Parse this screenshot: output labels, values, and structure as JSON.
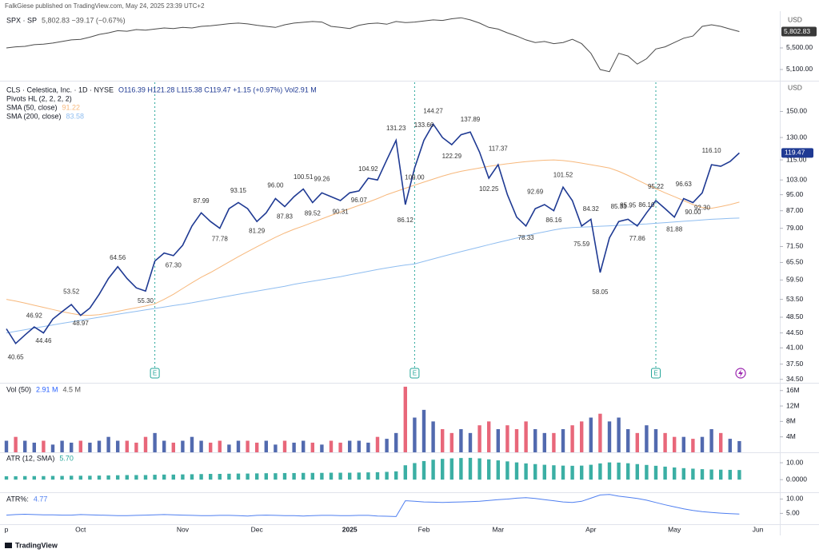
{
  "header": "FalkGiese published on TradingView.com, May 24, 2025 23:39 UTC+2",
  "footer": "TradingView",
  "chart_data": [
    {
      "type": "line",
      "title": "SPX · SP",
      "subtitle": "5,802.83  −39.17 (−0.67%)",
      "unit": "USD",
      "color": "#4a4a4a",
      "ylim": [
        4907,
        6122
      ],
      "yticks": [
        {
          "value": 5500,
          "label": "5,500.00"
        },
        {
          "value": 5100,
          "label": "5,100.00"
        }
      ],
      "last_label": "5,802.83",
      "values": [
        5500,
        5520,
        5530,
        5560,
        5570,
        5590,
        5620,
        5650,
        5660,
        5700,
        5750,
        5780,
        5820,
        5810,
        5840,
        5830,
        5850,
        5870,
        5860,
        5880,
        5870,
        5900,
        5910,
        5930,
        5950,
        5960,
        5945,
        5920,
        5900,
        5880,
        5930,
        5960,
        5975,
        5990,
        5980,
        5900,
        5880,
        5860,
        5920,
        5950,
        5960,
        5940,
        5990,
        5970,
        5980,
        6000,
        6020,
        6010,
        6040,
        6060,
        6020,
        5960,
        5880,
        5850,
        5780,
        5720,
        5650,
        5600,
        5620,
        5580,
        5600,
        5660,
        5580,
        5400,
        5100,
        5060,
        5400,
        5350,
        5200,
        5300,
        5480,
        5520,
        5600,
        5680,
        5720,
        5900,
        5930,
        5900,
        5850,
        5802.83,
        null,
        null,
        null,
        null
      ]
    },
    {
      "type": "line",
      "title": "CLS · Celestica, Inc. · 1D · NYSE",
      "subtitle": "O116.39 H121.28 L115.38 C119.47 +1.15 (+0.97%) Vol2.91 M",
      "unit": "USD",
      "log_scale": true,
      "ylim": [
        34,
        176
      ],
      "yticks": [
        {
          "value": 150,
          "label": "150.00"
        },
        {
          "value": 130,
          "label": "130.00"
        },
        {
          "value": 115,
          "label": "115.00"
        },
        {
          "value": 103,
          "label": "103.00"
        },
        {
          "value": 95,
          "label": "95.00"
        },
        {
          "value": 87,
          "label": "87.00"
        },
        {
          "value": 79,
          "label": "79.00"
        },
        {
          "value": 71.5,
          "label": "71.50"
        },
        {
          "value": 65.5,
          "label": "65.50"
        },
        {
          "value": 59.5,
          "label": "59.50"
        },
        {
          "value": 53.5,
          "label": "53.50"
        },
        {
          "value": 48.5,
          "label": "48.50"
        },
        {
          "value": 44.5,
          "label": "44.50"
        },
        {
          "value": 41,
          "label": "41.00"
        },
        {
          "value": 37.5,
          "label": "37.50"
        },
        {
          "value": 34.5,
          "label": "34.50"
        }
      ],
      "categories": [
        "p",
        null,
        null,
        null,
        null,
        null,
        null,
        null,
        "Oct",
        null,
        null,
        null,
        null,
        null,
        null,
        null,
        null,
        null,
        null,
        "Nov",
        null,
        null,
        null,
        null,
        null,
        null,
        null,
        "Dec",
        null,
        null,
        null,
        null,
        null,
        null,
        null,
        null,
        null,
        "2025",
        null,
        null,
        null,
        null,
        null,
        null,
        null,
        "Feb",
        null,
        null,
        null,
        null,
        null,
        null,
        null,
        "Mar",
        null,
        null,
        null,
        null,
        null,
        null,
        null,
        null,
        null,
        "Apr",
        null,
        null,
        null,
        null,
        null,
        null,
        null,
        null,
        "May",
        null,
        null,
        null,
        null,
        null,
        null,
        null,
        null,
        "Jun",
        null,
        null
      ],
      "series": [
        {
          "color": "#1f3a93",
          "values": [
            45.5,
            42,
            44,
            46,
            44.5,
            48,
            50,
            52,
            49,
            51,
            55,
            60,
            64,
            60,
            57,
            56,
            66,
            69,
            68,
            72,
            80,
            86,
            82,
            79,
            88,
            91,
            88,
            82,
            86,
            93,
            89,
            94,
            98,
            91,
            96,
            94,
            92,
            96,
            97,
            104,
            103,
            115,
            128,
            90,
            110,
            128,
            140,
            130,
            125,
            132,
            134,
            120,
            104,
            112,
            95,
            84,
            80,
            88,
            90,
            87,
            99,
            92,
            80,
            83,
            62,
            75,
            82,
            83,
            80,
            86,
            92,
            88,
            84,
            93,
            91,
            96,
            112,
            111,
            114,
            119.47,
            null,
            null,
            null,
            null
          ]
        },
        {
          "name": "SMA (50, close)",
          "color": "#f7b87c",
          "values": [
            53.5,
            53.0,
            52.4,
            51.8,
            51.2,
            50.6,
            50.0,
            49.5,
            49.1,
            49.0,
            49.2,
            49.6,
            50.1,
            50.6,
            51.1,
            51.6,
            52.2,
            53.5,
            55.0,
            56.8,
            58.6,
            60.4,
            62.0,
            63.8,
            65.7,
            67.6,
            69.5,
            71.4,
            73.3,
            75.2,
            77.0,
            78.6,
            80.0,
            81.6,
            83.2,
            84.8,
            86.4,
            88.0,
            89.6,
            91.2,
            93.0,
            95.0,
            96.7,
            98.4,
            100.1,
            101.8,
            103.5,
            105.2,
            106.7,
            108.0,
            109.0,
            110.0,
            111.0,
            111.8,
            112.6,
            113.3,
            113.9,
            114.4,
            114.8,
            115.0,
            114.6,
            113.9,
            113.0,
            112.0,
            111.0,
            110.0,
            108.0,
            105.6,
            103.0,
            100.5,
            98.2,
            96.0,
            94.0,
            92.0,
            90.0,
            88.5,
            88.2,
            89.0,
            90.0,
            91.22,
            null,
            null,
            null,
            null
          ]
        },
        {
          "name": "SMA (200, close)",
          "color": "#8fbdf0",
          "values": [
            44.5,
            44.9,
            45.3,
            45.7,
            46.1,
            46.5,
            46.9,
            47.3,
            47.7,
            48.1,
            48.5,
            48.9,
            49.3,
            49.7,
            50.1,
            50.5,
            50.9,
            51.3,
            51.7,
            52.1,
            52.5,
            53.0,
            53.5,
            54.0,
            54.5,
            55.0,
            55.5,
            56.0,
            56.5,
            57.0,
            57.5,
            58.1,
            58.6,
            59.1,
            59.6,
            60.1,
            60.6,
            61.2,
            61.8,
            62.4,
            63.0,
            63.6,
            64.1,
            64.6,
            65.0,
            65.9,
            66.8,
            67.7,
            68.6,
            69.5,
            70.4,
            71.3,
            72.2,
            73.1,
            74.0,
            74.9,
            75.8,
            76.7,
            77.5,
            78.3,
            79.0,
            79.3,
            79.5,
            79.7,
            79.9,
            80.1,
            80.3,
            80.5,
            80.7,
            80.9,
            81.2,
            81.5,
            81.8,
            82.1,
            82.4,
            82.7,
            83.0,
            83.2,
            83.4,
            83.58,
            null,
            null,
            null,
            null
          ]
        }
      ],
      "pivots_title": "Pivots HL (2, 2, 2, 2)",
      "pivots": [
        null,
        40.65,
        null,
        46.92,
        44.46,
        null,
        null,
        53.52,
        48.97,
        null,
        null,
        null,
        64.56,
        null,
        null,
        55.3,
        null,
        null,
        67.3,
        null,
        null,
        87.99,
        null,
        77.78,
        null,
        93.15,
        null,
        81.29,
        null,
        96,
        87.83,
        null,
        100.51,
        89.52,
        99.26,
        null,
        90.31,
        null,
        96.07,
        104.92,
        null,
        null,
        131.23,
        86.12,
        109,
        133.66,
        144.27,
        null,
        122.29,
        null,
        137.89,
        null,
        102.25,
        117.37,
        null,
        null,
        78.33,
        92.69,
        null,
        86.16,
        101.52,
        null,
        75.59,
        84.32,
        58.05,
        null,
        85.33,
        85.95,
        77.86,
        86.1,
        95.22,
        null,
        81.88,
        96.63,
        90,
        92.3,
        116.1,
        null,
        null,
        null,
        null,
        null,
        null,
        null
      ],
      "pivot_labels": [
        null,
        "40.65",
        null,
        "46.92",
        "44.46",
        null,
        null,
        "53.52",
        "48.97",
        null,
        null,
        null,
        "64.56",
        null,
        null,
        "55.30",
        null,
        null,
        "67.30",
        null,
        null,
        "87.99",
        null,
        "77.78",
        null,
        "93.15",
        null,
        "81.29",
        null,
        "96.00",
        "87.83",
        null,
        "100.51",
        "89.52",
        "99.26",
        null,
        "90.31",
        null,
        "96.07",
        "104.92",
        null,
        null,
        "131.23",
        "86.12",
        "109.00",
        "133.66",
        "144.27",
        null,
        "122.29",
        null,
        "137.89",
        null,
        "102.25",
        "117.37",
        null,
        null,
        "78.33",
        "92.69",
        null,
        "86.16",
        "101.52",
        null,
        "75.59",
        "84.32",
        "58.05",
        null,
        "85.33",
        "85.95",
        "77.86",
        "86.10",
        "95.22",
        null,
        "81.88",
        "96.63",
        "90.00",
        "92.30",
        "116.10",
        null,
        null,
        null,
        null,
        null,
        null,
        null
      ],
      "earnings": [
        {
          "label": "E",
          "index": 16
        },
        {
          "label": "E",
          "index": 44
        },
        {
          "label": "E",
          "index": 70
        }
      ]
    },
    {
      "type": "bar",
      "title": "Vol (50)",
      "subtitle": "2.91 M",
      "subtitle2": "4.5 M",
      "up_color": "#3f5aa6",
      "down_color": "#e5566b",
      "ylim": [
        0,
        17.6
      ],
      "yticks": [
        {
          "value": 16,
          "label": "16M"
        },
        {
          "value": 12,
          "label": "12M"
        },
        {
          "value": 8,
          "label": "8M"
        },
        {
          "value": 4,
          "label": "4M"
        }
      ],
      "values": [
        3,
        4,
        3,
        2.5,
        3,
        2,
        3,
        2.5,
        3,
        2.5,
        3,
        4,
        3,
        3,
        2.5,
        4,
        5,
        3,
        2.5,
        3,
        4,
        3,
        2.5,
        3,
        2,
        3,
        3,
        2.5,
        3,
        2,
        3,
        2.5,
        3,
        2.5,
        2,
        3,
        2.5,
        3,
        3,
        2.5,
        4,
        3.5,
        5,
        17,
        9,
        11,
        8,
        6,
        5,
        6,
        5,
        7,
        8,
        6,
        7,
        6,
        8,
        6,
        5,
        5,
        6,
        7,
        8,
        9,
        10,
        8,
        9,
        6,
        5,
        7,
        6,
        5,
        4,
        4,
        3.5,
        4,
        6,
        5,
        3.5,
        2.91,
        null,
        null,
        null,
        null
      ]
    },
    {
      "type": "bar",
      "title": "ATR (12, SMA)",
      "subtitle": "5.70",
      "color": "#26a69a",
      "ylim": [
        -7,
        15.7
      ],
      "yticks": [
        {
          "value": 10,
          "label": "10.00"
        },
        {
          "value": 0,
          "label": "0.0000"
        }
      ],
      "values": [
        2.0,
        2.0,
        2.1,
        2.1,
        2.1,
        2.2,
        2.2,
        2.3,
        2.3,
        2.3,
        2.4,
        2.5,
        2.6,
        2.7,
        2.7,
        2.7,
        2.9,
        3.0,
        3.0,
        3.1,
        3.2,
        3.3,
        3.4,
        3.4,
        3.5,
        3.6,
        3.6,
        3.7,
        3.8,
        3.8,
        3.9,
        3.9,
        4.0,
        4.0,
        4.0,
        4.1,
        4.1,
        4.1,
        4.2,
        4.3,
        4.4,
        4.6,
        4.9,
        8.5,
        9.8,
        11.0,
        11.8,
        12.3,
        12.6,
        12.8,
        12.9,
        12.6,
        12.0,
        11.4,
        10.8,
        10.2,
        9.6,
        9.2,
        8.8,
        8.5,
        8.3,
        8.2,
        8.3,
        8.8,
        9.6,
        10.2,
        10.1,
        9.7,
        9.2,
        8.7,
        8.2,
        7.7,
        7.2,
        6.8,
        6.5,
        6.2,
        6.0,
        5.9,
        5.8,
        5.7,
        null,
        null,
        null,
        null
      ]
    },
    {
      "type": "line",
      "title": "ATR%:",
      "color": "#4f7ff0",
      "ylim": [
        1.5,
        11.8
      ],
      "yticks": [
        {
          "value": 10,
          "label": "10.00"
        },
        {
          "value": 5,
          "label": "5.00"
        }
      ],
      "values": [
        4.4,
        4.6,
        4.7,
        4.6,
        4.5,
        4.5,
        4.4,
        4.4,
        4.6,
        4.5,
        4.4,
        4.3,
        4.2,
        4.2,
        4.3,
        4.4,
        4.5,
        4.6,
        4.5,
        4.4,
        4.3,
        4.2,
        4.2,
        4.3,
        4.3,
        4.2,
        4.1,
        4.3,
        4.4,
        4.3,
        4.2,
        4.2,
        4.1,
        4.2,
        4.3,
        4.3,
        4.2,
        4.2,
        4.3,
        4.3,
        4.1,
        4.0,
        3.9,
        9.4,
        9.2,
        9.0,
        8.9,
        8.8,
        8.9,
        9.0,
        9.1,
        9.2,
        9.5,
        9.8,
        10.0,
        10.3,
        10.5,
        10.2,
        9.8,
        9.4,
        9.0,
        8.8,
        9.2,
        10.3,
        11.4,
        11.6,
        11.0,
        10.6,
        10.2,
        9.6,
        8.8,
        8.0,
        7.3,
        6.6,
        6.0,
        5.6,
        5.3,
        5.1,
        4.9,
        4.77,
        null,
        null,
        null,
        null
      ]
    }
  ]
}
